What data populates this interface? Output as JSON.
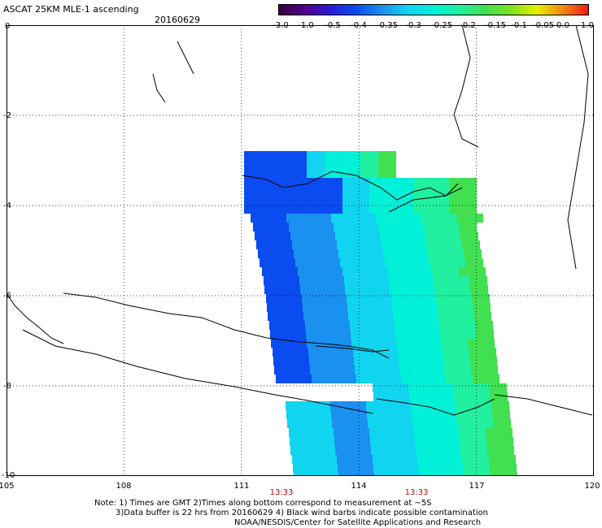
{
  "title": "ASCAT 25KM MLE-1 ascending",
  "date": "20160629",
  "colorbar": {
    "labels": [
      "-3.0",
      "-1.0",
      "-0.5",
      "-0.4",
      "-0.35",
      "-0.3",
      "-0.25",
      "-0.2",
      "-0.15",
      "-0.1",
      "-0.05",
      "0.0",
      "1.0"
    ],
    "colors": [
      "#3a0040",
      "#50008a",
      "#2a1ad8",
      "#0a4cf0",
      "#1a90f0",
      "#10d4f0",
      "#00f0d8",
      "#20f0a0",
      "#40e050",
      "#80e020",
      "#e8f000",
      "#f08a10",
      "#f01818"
    ]
  },
  "map": {
    "lon_range": [
      105,
      120
    ],
    "lat_range": [
      0,
      -10
    ],
    "lon_ticks": [
      "105",
      "108",
      "111",
      "114",
      "117",
      "120"
    ],
    "lat_ticks": [
      "0",
      "-2",
      "-4",
      "-6",
      "-8",
      "-10"
    ],
    "time_labels": [
      "13:33",
      "13:33"
    ]
  },
  "notes": [
    "Note: 1) Times are GMT 2)Times along bottom correspond to measurement at ~5S",
    "3)Data buffer is 22 hrs from 20160629 4) Black wind barbs indicate possible contamination",
    "NOAA/NESDIS/Center for Satellite Applications and Research"
  ]
}
